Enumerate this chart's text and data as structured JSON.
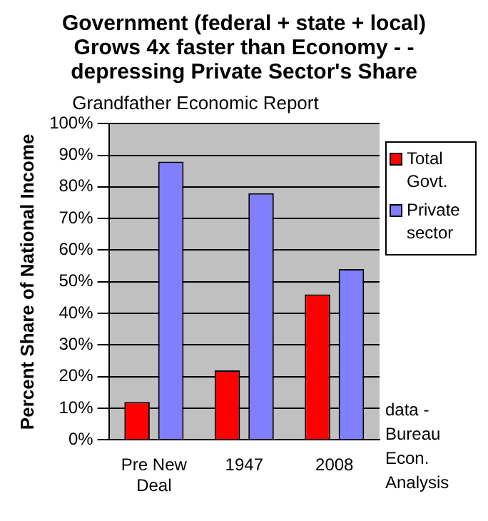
{
  "chart_data": {
    "type": "bar",
    "title": "Government (federal + state + local) Grows 4x faster than Economy - - depressing Private Sector's Share",
    "subtitle": "Grandfather Economic Report",
    "ylabel": "Percent Share of National Income",
    "categories": [
      "Pre New Deal",
      "1947",
      "2008"
    ],
    "series": [
      {
        "name": "Total Govt.",
        "color": "#ff0000",
        "values": [
          12,
          22,
          46
        ]
      },
      {
        "name": "Private sector",
        "color": "#8080ff",
        "values": [
          88,
          78,
          54
        ]
      }
    ],
    "ylim": [
      0,
      100
    ],
    "yticks": [
      {
        "value": 0,
        "label": "0%"
      },
      {
        "value": 10,
        "label": "10%"
      },
      {
        "value": 20,
        "label": "20%"
      },
      {
        "value": 30,
        "label": "30%"
      },
      {
        "value": 40,
        "label": "40%"
      },
      {
        "value": 50,
        "label": "50%"
      },
      {
        "value": 60,
        "label": "60%"
      },
      {
        "value": 70,
        "label": "70%"
      },
      {
        "value": 80,
        "label": "80%"
      },
      {
        "value": 90,
        "label": "90%"
      },
      {
        "value": 100,
        "label": "100%"
      }
    ],
    "grid": "y",
    "legend": "right",
    "annotations": [
      "data - Bureau Econ. Analysis"
    ]
  }
}
